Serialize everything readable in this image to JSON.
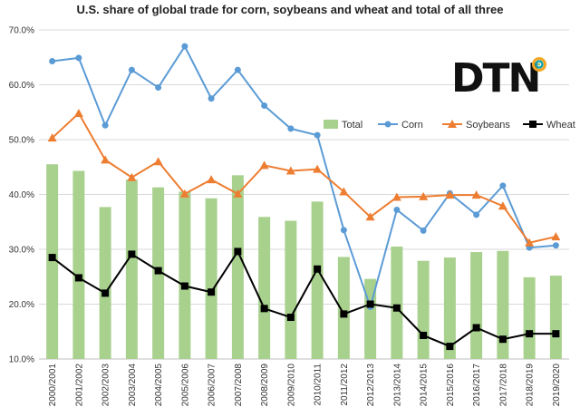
{
  "chart_data": {
    "type": "bar",
    "title": "U.S. share of global trade for corn, soybeans and wheat and total of all three",
    "xlabel": "",
    "ylabel": "",
    "ylim": [
      10,
      70
    ],
    "y_ticks": [
      "10.0%",
      "20.0%",
      "30.0%",
      "40.0%",
      "50.0%",
      "60.0%",
      "70.0%"
    ],
    "grid": "horizontal",
    "legend_position": "upper-right",
    "categories": [
      "2000/2001",
      "2001/2002",
      "2002/2003",
      "2003/2004",
      "2004/2005",
      "2005/2006",
      "2006/2007",
      "2007/2008",
      "2008/2009",
      "2009/2010",
      "2010/2011",
      "2011/2012",
      "2012/2013",
      "2013/2014",
      "2014/2015",
      "2015/2016",
      "2016/2017",
      "2017/2018",
      "2018/2019",
      "2019/2020"
    ],
    "series": [
      {
        "name": "Total",
        "kind": "bar",
        "color": "#a9d18e",
        "values": [
          45.5,
          44.3,
          37.7,
          42.7,
          41.3,
          40.5,
          39.3,
          43.5,
          35.9,
          35.2,
          38.7,
          28.6,
          24.6,
          30.5,
          27.9,
          28.5,
          29.5,
          29.7,
          24.9,
          25.2
        ]
      },
      {
        "name": "Corn",
        "kind": "line",
        "marker": "circle",
        "color": "#5b9bd5",
        "values": [
          64.3,
          64.9,
          52.6,
          62.7,
          59.5,
          67.0,
          57.5,
          62.7,
          56.2,
          52.0,
          50.8,
          33.5,
          19.5,
          37.2,
          33.4,
          40.2,
          36.3,
          41.6,
          30.3,
          30.7
        ]
      },
      {
        "name": "Soybeans",
        "kind": "line",
        "marker": "triangle",
        "color": "#ed7d31",
        "values": [
          50.3,
          54.8,
          46.3,
          43.1,
          46.0,
          40.1,
          42.7,
          40.1,
          45.3,
          44.3,
          44.6,
          40.5,
          35.9,
          39.5,
          39.6,
          39.9,
          39.9,
          37.9,
          31.2,
          32.3
        ]
      },
      {
        "name": "Wheat",
        "kind": "line",
        "marker": "square",
        "color": "#000000",
        "values": [
          28.5,
          24.8,
          22.0,
          29.1,
          26.1,
          23.3,
          22.2,
          29.6,
          19.2,
          17.6,
          26.4,
          18.2,
          20.0,
          19.3,
          14.3,
          12.3,
          15.7,
          13.6,
          14.6,
          14.6
        ]
      }
    ]
  },
  "logo": {
    "text": "DTN",
    "ring_colors": [
      "#f5a623",
      "#1aa1a8",
      "#8dc63f"
    ]
  }
}
